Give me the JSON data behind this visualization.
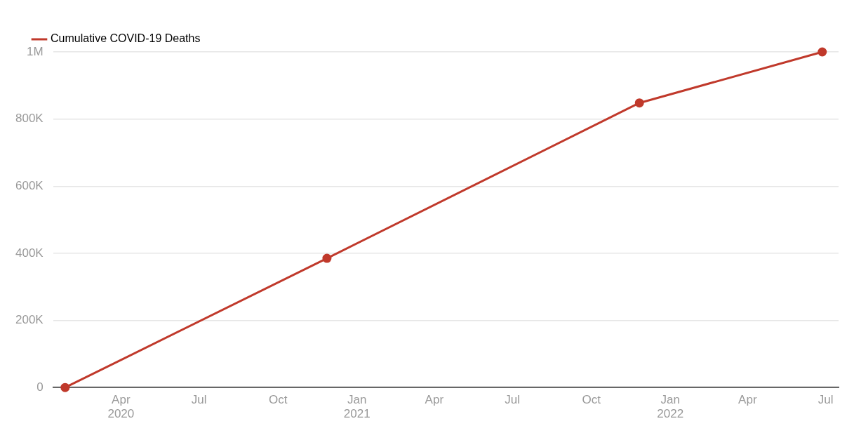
{
  "chart_data": {
    "type": "line",
    "x": [
      "2020-01-27",
      "2020-11-27",
      "2021-11-26",
      "2022-06-27"
    ],
    "series": [
      {
        "name": "Cumulative COVID-19 Deaths",
        "color": "#c0392b",
        "values": [
          0,
          385000,
          848000,
          1000000
        ]
      }
    ],
    "xlim": [
      "2020-01-13",
      "2022-07-16"
    ],
    "xticks": [
      {
        "value": "2020-04",
        "label": "Apr\n2020"
      },
      {
        "value": "2020-07",
        "label": "Jul"
      },
      {
        "value": "2020-10",
        "label": "Oct"
      },
      {
        "value": "2021-01",
        "label": "Jan\n2021"
      },
      {
        "value": "2021-04",
        "label": "Apr"
      },
      {
        "value": "2021-07",
        "label": "Jul"
      },
      {
        "value": "2021-10",
        "label": "Oct"
      },
      {
        "value": "2022-01",
        "label": "Jan\n2022"
      },
      {
        "value": "2022-04",
        "label": "Apr"
      },
      {
        "value": "2022-07",
        "label": "Jul"
      }
    ],
    "ylim": [
      0,
      1000000
    ],
    "yticks": [
      0,
      {
        "value": 200000,
        "label": "200K"
      },
      {
        "value": 400000,
        "label": "400K"
      },
      {
        "value": 600000,
        "label": "600K"
      },
      {
        "value": 800000,
        "label": "800K"
      },
      {
        "value": 1000000,
        "label": "1M"
      }
    ],
    "grid": "y",
    "legend": "top left",
    "marker": "circle",
    "line_style": "solid"
  }
}
